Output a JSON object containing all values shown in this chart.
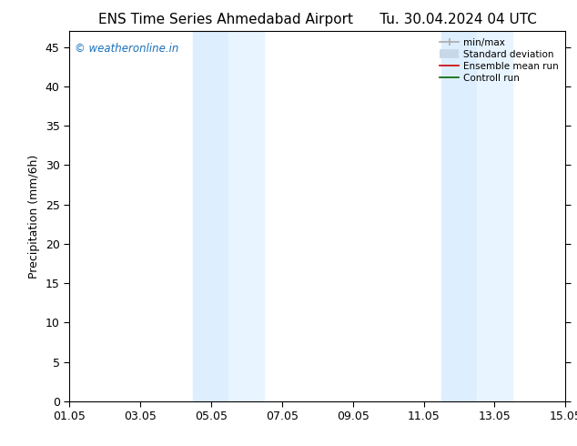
{
  "title": "ENS Time Series Ahmedabad Airport",
  "title2": "Tu. 30.04.2024 04 UTC",
  "ylabel": "Precipitation (mm/6h)",
  "background_color": "#ffffff",
  "plot_bg_color": "#ffffff",
  "ylim": [
    0,
    47
  ],
  "yticks": [
    0,
    5,
    10,
    15,
    20,
    25,
    30,
    35,
    40,
    45
  ],
  "xlim": [
    0,
    14
  ],
  "xtick_labels": [
    "01.05",
    "03.05",
    "05.05",
    "07.05",
    "09.05",
    "11.05",
    "13.05",
    "15.05"
  ],
  "xtick_positions": [
    0,
    2,
    4,
    6,
    8,
    10,
    12,
    14
  ],
  "shaded_regions": [
    {
      "x_start": 3.5,
      "x_end": 4.5,
      "color": "#ddeeff"
    },
    {
      "x_start": 4.5,
      "x_end": 5.5,
      "color": "#e8f4ff"
    },
    {
      "x_start": 10.5,
      "x_end": 11.5,
      "color": "#ddeeff"
    },
    {
      "x_start": 11.5,
      "x_end": 12.5,
      "color": "#e8f4ff"
    }
  ],
  "watermark_text": "© weatheronline.in",
  "watermark_color": "#1a6fba",
  "legend_items": [
    {
      "label": "min/max",
      "color": "#aaaaaa",
      "lw": 1.2,
      "style": "minmax"
    },
    {
      "label": "Standard deviation",
      "color": "#c8d8e8",
      "lw": 7,
      "style": "thick"
    },
    {
      "label": "Ensemble mean run",
      "color": "#cc0000",
      "lw": 1.2,
      "style": "line"
    },
    {
      "label": "Controll run",
      "color": "#006600",
      "lw": 1.2,
      "style": "line"
    }
  ],
  "title_fontsize": 11,
  "ylabel_fontsize": 9,
  "tick_fontsize": 9,
  "legend_fontsize": 7.5
}
